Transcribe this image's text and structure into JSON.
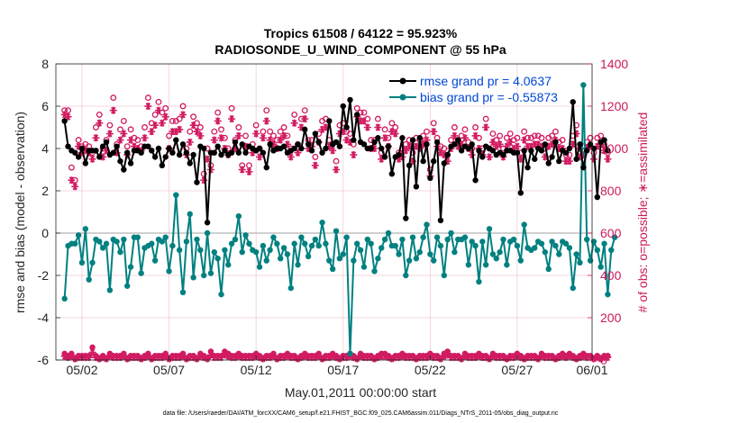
{
  "chart_data": {
    "type": "line",
    "title_line1": "Tropics 61508 / 64122 = 95.923%",
    "title_line2": "RADIOSONDE_U_WIND_COMPONENT @ 55 hPa",
    "xlabel": "May.01,2011 00:00:00 start",
    "ylabel_left": "rmse and bias (model - observation)",
    "ylabel_right": "# of obs: o=possible; ∗=assimilated",
    "xlim": [
      0.5,
      31.3
    ],
    "ylim_left": [
      -6,
      8
    ],
    "ylim_right": [
      0,
      1400
    ],
    "x_ticks": [
      {
        "x": 2,
        "label": "05/02"
      },
      {
        "x": 7,
        "label": "05/07"
      },
      {
        "x": 12,
        "label": "05/12"
      },
      {
        "x": 17,
        "label": "05/17"
      },
      {
        "x": 22,
        "label": "05/22"
      },
      {
        "x": 27,
        "label": "05/27"
      },
      {
        "x": 32,
        "label": "06/01"
      }
    ],
    "y_ticks_left": [
      "-6",
      "-4",
      "-2",
      "0",
      "2",
      "4",
      "6",
      "8"
    ],
    "y_ticks_right": [
      "0",
      "200",
      "400",
      "600",
      "800",
      "1000",
      "1200",
      "1400"
    ],
    "legend": [
      {
        "label": "rmse grand pr = 4.0637",
        "color": "#000000"
      },
      {
        "label": "bias grand pr = -0.55873",
        "color": "#008080"
      }
    ],
    "footnote": "data file: /Users/raeder/DAI/ATM_forcXX/CAM6_setup/f.e21.FHIST_BGC.f09_025.CAM6assim.011/Diags_NTrS_2011-05/obs_diag_output.nc",
    "series": [
      {
        "name": "rmse",
        "color": "#000000",
        "values": [
          5.3,
          4.1,
          3.9,
          3.8,
          3.6,
          4.0,
          3.3,
          3.9,
          3.9,
          3.9,
          3.6,
          4.1,
          4.3,
          3.7,
          3.8,
          4.1,
          3.4,
          3.0,
          3.8,
          3.3,
          3.9,
          3.9,
          3.8,
          4.1,
          4.1,
          3.9,
          3.6,
          4.0,
          3.2,
          3.6,
          4.0,
          3.8,
          4.4,
          3.7,
          4.2,
          3.8,
          3.3,
          3.7,
          2.4,
          4.1,
          4.0,
          0.5,
          3.8,
          3.8,
          4.1,
          3.7,
          3.9,
          3.7,
          3.8,
          4.3,
          3.8,
          4.2,
          3.8,
          4.1,
          4.0,
          3.9,
          4.0,
          3.8,
          3.1,
          4.2,
          3.9,
          4.0,
          4.0,
          4.1,
          3.8,
          3.9,
          4.0,
          4.2,
          4.0,
          4.9,
          4.2,
          3.9,
          4.7,
          4.3,
          3.8,
          4.0,
          5.3,
          4.2,
          4.3,
          4.1,
          6.0,
          5.0,
          6.3,
          4.4,
          5.6,
          4.3,
          4.2,
          4.0,
          4.0,
          4.3,
          4.5,
          4.0,
          3.6,
          4.1,
          2.8,
          3.6,
          3.7,
          4.5,
          0.7,
          3.2,
          4.4,
          2.2,
          4.5,
          3.4,
          4.2,
          2.6,
          3.4,
          4.3,
          0.6,
          3.3,
          3.7,
          4.1,
          4.2,
          4.4,
          3.9,
          4.1,
          4.0,
          4.2,
          2.5,
          3.9,
          3.6,
          4.1,
          4.0,
          3.9,
          3.7,
          3.8,
          3.7,
          3.9,
          3.9,
          3.8,
          3.8,
          1.9,
          3.9,
          3.1,
          3.9,
          3.5,
          4.0,
          3.9,
          4.2,
          3.3,
          3.6,
          4.3,
          3.4,
          3.9,
          3.8,
          4.0,
          6.2,
          3.5,
          4.2,
          3.1,
          3.9,
          4.2,
          4.0,
          1.7,
          4.3,
          4.4,
          3.9
        ],
        "bias_values": [
          -3.1,
          -0.6,
          -0.5,
          -0.5,
          -0.1,
          -1.4,
          0.2,
          -2.2,
          -1.4,
          -0.3,
          -0.4,
          -0.7,
          -0.5,
          -2.7,
          -0.3,
          -0.4,
          -0.9,
          -0.3,
          -2.5,
          -1.6,
          -0.2,
          -0.2,
          -1.9,
          -0.7,
          -0.6,
          -0.5,
          -1.3,
          -0.3,
          -0.4,
          -0.2,
          -1.8,
          -0.6,
          1.8,
          -0.8,
          -2.8,
          -0.4,
          0.9,
          -2.1,
          -0.3,
          -0.8,
          -2.0,
          0.0,
          -1.9,
          -0.9,
          -1.2,
          -2.9,
          -0.8,
          -1.5,
          -0.5,
          -0.3,
          0.8,
          -0.9,
          -0.1,
          -0.5,
          -0.8,
          -0.9,
          -1.6,
          -0.6,
          -1.3,
          -0.8,
          -0.2,
          -0.5,
          -1.2,
          -0.7,
          -1.0,
          -2.6,
          -0.5,
          -1.5,
          -0.2,
          -0.5,
          -1.1,
          -0.6,
          -0.3,
          -0.6,
          0.5,
          -0.5,
          -1.3,
          -1.7,
          0.1,
          -1.2,
          -1.0,
          -0.2,
          -5.7,
          -1.3,
          -0.5,
          -0.8,
          -1.6,
          -0.3,
          -0.5,
          -1.8,
          -1.2,
          -0.7,
          -0.3,
          0.0,
          -0.6,
          -0.6,
          -1.0,
          -0.3,
          -2.0,
          -1.3,
          -0.2,
          -1.2,
          -0.9,
          -0.2,
          0.4,
          -1.0,
          -1.3,
          -0.2,
          -0.6,
          -2.0,
          -0.3,
          0.0,
          -0.9,
          -0.3,
          -0.3,
          -0.2,
          -1.5,
          -0.4,
          -0.6,
          -2.3,
          -0.4,
          -1.5,
          0.2,
          -1.0,
          -1.2,
          -0.9,
          -0.3,
          -1.5,
          -0.4,
          -0.3,
          -0.6,
          -1.3,
          0.4,
          -0.7,
          -0.8,
          -0.7,
          -0.4,
          -0.5,
          -0.9,
          -1.7,
          -0.4,
          -0.6,
          -1.0,
          -0.4,
          -0.5,
          -0.7,
          -2.6,
          -1.0,
          -1.4,
          7.0,
          -0.3,
          -1.3,
          -0.4,
          -0.8,
          -1.6,
          -0.5,
          -2.9,
          -0.8,
          -0.2
        ]
      }
    ],
    "obs_possible": [
      1180,
      1180,
      910,
      850,
      1040,
      1010,
      1020,
      1010,
      980,
      1100,
      1160,
      1000,
      1040,
      1110,
      1240,
      1020,
      1090,
      1130,
      1010,
      1090,
      1050,
      1040,
      1010,
      1100,
      1240,
      1120,
      1160,
      1220,
      1170,
      1190,
      1060,
      1130,
      1130,
      1140,
      1200,
      1000,
      1080,
      1150,
      1120,
      1100,
      880,
      1000,
      920,
      1080,
      1170,
      1090,
      1050,
      1000,
      1190,
      1040,
      1100,
      920,
      1060,
      920,
      1020,
      1110,
      1000,
      1080,
      1180,
      1080,
      1060,
      1040,
      1080,
      1100,
      1060,
      1000,
      1160,
      1020,
      1140,
      1180,
      1040,
      1040,
      960,
      1070,
      1130,
      1140,
      1040,
      1020,
      940,
      1110,
      1120,
      1080,
      1070,
      1020,
      1190,
      1170,
      1170,
      1140,
      1040,
      1040,
      1140,
      980,
      1090,
      1050,
      1120,
      1100,
      980,
      1000,
      1020,
      1040,
      980,
      1050,
      1040,
      1060,
      1080,
      900,
      1120,
      1050,
      1010,
      1000,
      970,
      1040,
      1100,
      1040,
      1060,
      1090,
      1030,
      1000,
      1100,
      1050,
      1000,
      1140,
      1000,
      1070,
      1040,
      1060,
      1000,
      1050,
      1070,
      1040,
      1050,
      980,
      1080,
      1050,
      1050,
      1060,
      1060,
      1050,
      1000,
      1050,
      1060,
      1080,
      1030,
      1040,
      970,
      970,
      1060,
      1110,
      1000,
      1010,
      1030,
      1050,
      980,
      1050,
      1060,
      1020,
      980
    ],
    "obs_assimilated": [
      1160,
      1150,
      850,
      820,
      1010,
      980,
      990,
      980,
      950,
      1050,
      1120,
      960,
      990,
      1070,
      1180,
      980,
      1040,
      1070,
      970,
      1040,
      1010,
      1000,
      990,
      1050,
      1200,
      1080,
      1110,
      1180,
      1120,
      1150,
      1000,
      1080,
      1080,
      1090,
      1160,
      970,
      1030,
      1110,
      1080,
      1060,
      850,
      950,
      900,
      1040,
      1130,
      1050,
      1000,
      970,
      1140,
      1000,
      1060,
      900,
      1010,
      890,
      980,
      1070,
      960,
      1050,
      1130,
      1040,
      1020,
      1000,
      1040,
      1060,
      1020,
      960,
      1120,
      980,
      1100,
      1140,
      1000,
      1010,
      920,
      1030,
      1090,
      1100,
      1010,
      990,
      900,
      1070,
      1080,
      1040,
      1030,
      970,
      1150,
      1130,
      1130,
      1100,
      1000,
      1000,
      1100,
      950,
      1050,
      1010,
      1080,
      1070,
      950,
      960,
      990,
      1010,
      940,
      1010,
      1000,
      1020,
      1040,
      870,
      1080,
      1010,
      980,
      970,
      940,
      1000,
      1060,
      1010,
      1020,
      1050,
      1000,
      970,
      1060,
      1000,
      970,
      1100,
      960,
      1030,
      1010,
      1020,
      960,
      1010,
      1030,
      1000,
      1010,
      950,
      1040,
      1010,
      1010,
      1020,
      1020,
      1010,
      960,
      1010,
      1020,
      1040,
      1000,
      1000,
      940,
      940,
      1020,
      1070,
      960,
      970,
      1000,
      1010,
      950,
      1010,
      1020,
      990,
      950
    ],
    "obs_bottom_possible": [
      30,
      20,
      30,
      10,
      20,
      20,
      20,
      20,
      60,
      20,
      10,
      20,
      10,
      30,
      20,
      20,
      20,
      30,
      10,
      20,
      20,
      20,
      10,
      20,
      30,
      10,
      20,
      20,
      20,
      30,
      10,
      20,
      20,
      20,
      30,
      10,
      20,
      20,
      10,
      30,
      20,
      10,
      40,
      20,
      20,
      20,
      40,
      30,
      20,
      20,
      30,
      20,
      20,
      20,
      20,
      30,
      20,
      10,
      20,
      20,
      30,
      10,
      20,
      20,
      30,
      20,
      20,
      10,
      20,
      30,
      20,
      20,
      20,
      30,
      10,
      20,
      20,
      30,
      20,
      10,
      20,
      20,
      30,
      20,
      10,
      30,
      20,
      20,
      20,
      10,
      20,
      30,
      30,
      20,
      10,
      20,
      20,
      30,
      20,
      20,
      20,
      10,
      20,
      20,
      20,
      30,
      20,
      20,
      10,
      30,
      40,
      20,
      20,
      20,
      10,
      30,
      20,
      20,
      20,
      30,
      20,
      20,
      10,
      30,
      20,
      20,
      20,
      10,
      20,
      20,
      30,
      20,
      10,
      20,
      20,
      20,
      10,
      30,
      20,
      20,
      20,
      10,
      20,
      30,
      20,
      30,
      20,
      10,
      20,
      30,
      20,
      20,
      10,
      20,
      10,
      20,
      20,
      10
    ]
  }
}
